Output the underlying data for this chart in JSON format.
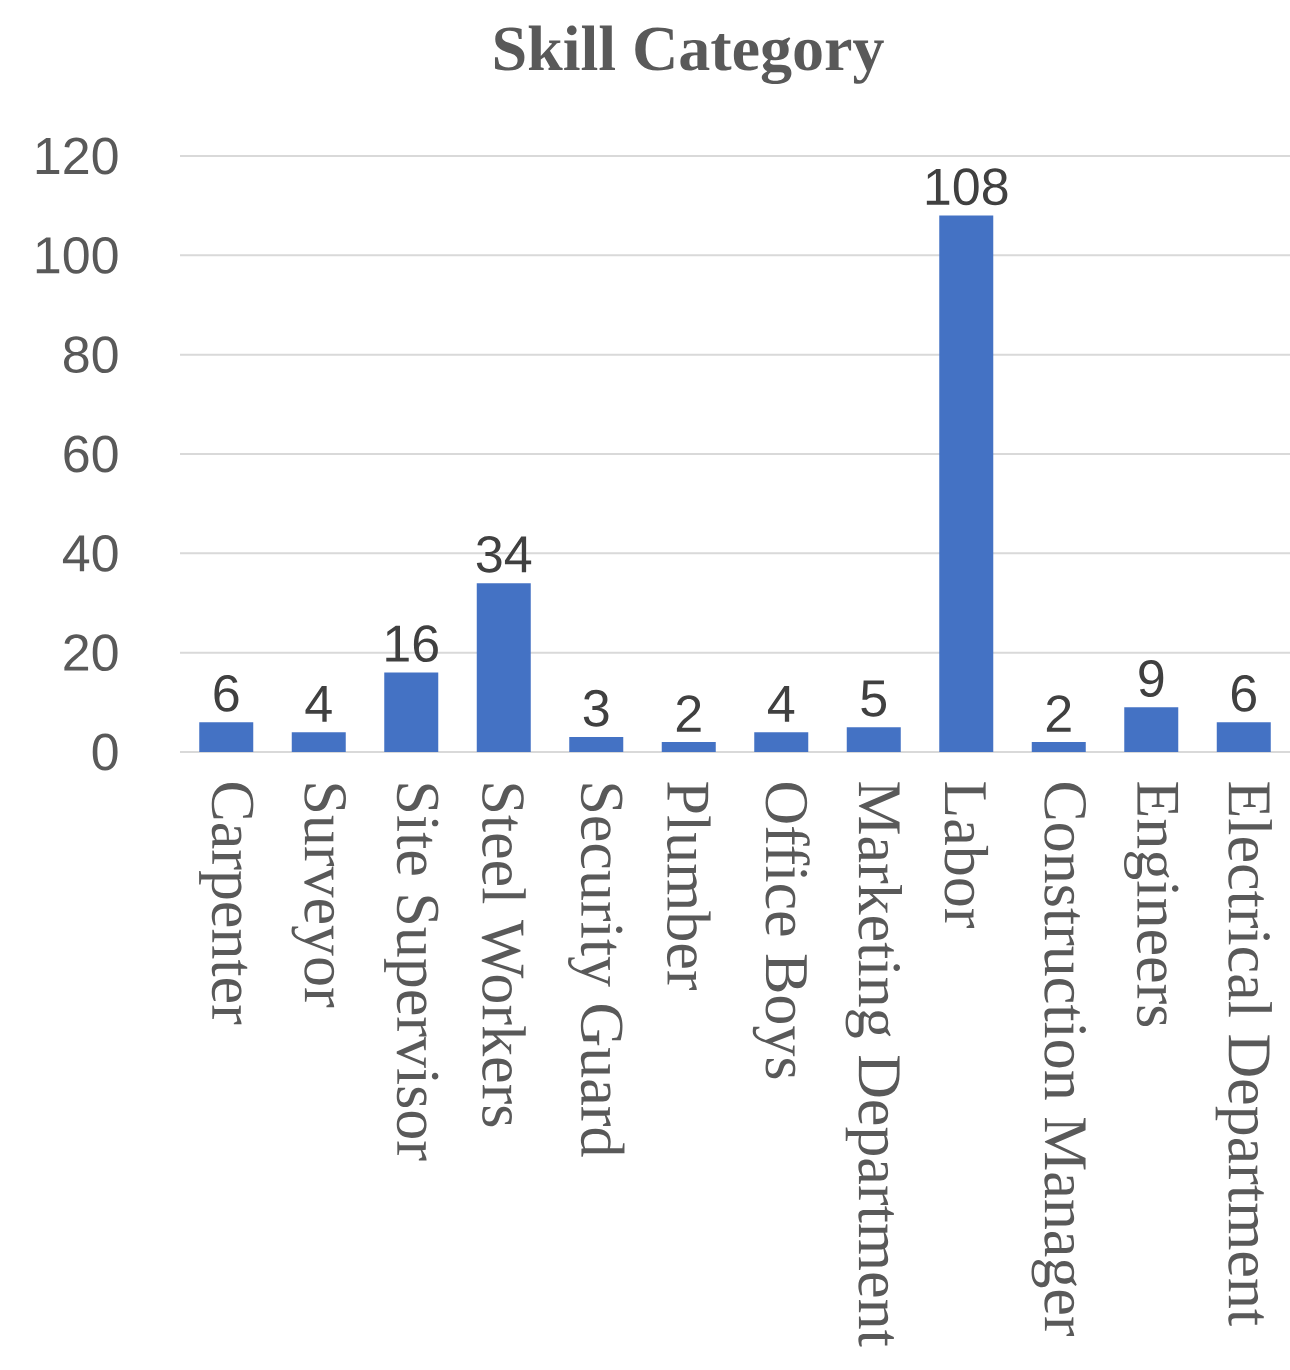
{
  "chart_data": {
    "type": "bar",
    "title": "Skill Category",
    "categories": [
      "Carpenter",
      "Surveyor",
      "Site Supervisor",
      "Steel Workers",
      "Security Guard",
      "Plumber",
      "Office Boys",
      "Marketing Department",
      "Labor",
      "Construction Manager",
      "Engineers",
      "Electrical Department"
    ],
    "values": [
      6,
      4,
      16,
      34,
      3,
      2,
      4,
      5,
      108,
      2,
      9,
      6
    ],
    "color": "#4472c4",
    "ylim": [
      0,
      120
    ],
    "yticks": [
      0,
      20,
      40,
      60,
      80,
      100,
      120
    ],
    "grid": "y",
    "data_labels": true
  }
}
